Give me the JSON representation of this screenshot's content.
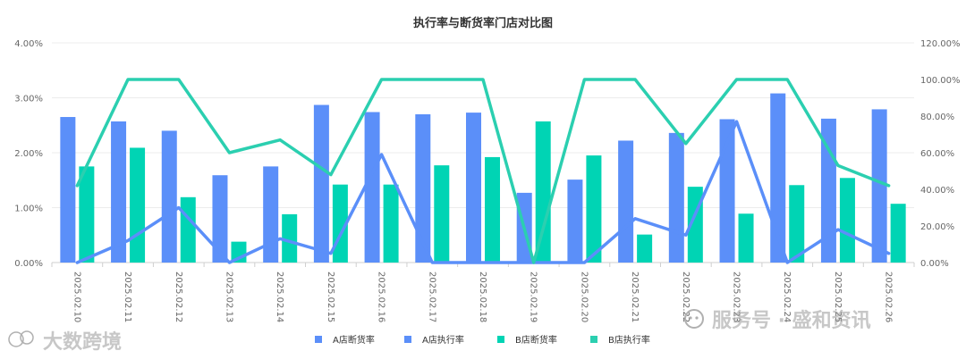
{
  "chart_data": {
    "type": "bar",
    "title": "执行率与断货率门店对比图",
    "categories": [
      "2025.02.10",
      "2025.02.11",
      "2025.02.12",
      "2025.02.13",
      "2025.02.14",
      "2025.02.15",
      "2025.02.16",
      "2025.02.17",
      "2025.02.18",
      "2025.02.19",
      "2025.02.20",
      "2025.02.21",
      "2025.02.22",
      "2025.02.23",
      "2025.02.24",
      "2025.02.25",
      "2025.02.26"
    ],
    "left_axis": {
      "ylim": [
        0,
        4
      ],
      "ticks": [
        "0.00%",
        "1.00%",
        "2.00%",
        "3.00%",
        "4.00%"
      ]
    },
    "right_axis": {
      "ylim": [
        0,
        120
      ],
      "ticks": [
        "0.00%",
        "20.00%",
        "40.00%",
        "60.00%",
        "80.00%",
        "100.00%",
        "120.00%"
      ]
    },
    "grid": true,
    "legend_position": "bottom",
    "series": [
      {
        "name": "A店断货率",
        "kind": "bar",
        "axis": "left",
        "unit": "%",
        "color": "#5B8FF9",
        "values": [
          2.65,
          2.57,
          2.4,
          1.59,
          1.75,
          2.87,
          2.74,
          2.7,
          2.73,
          1.27,
          1.51,
          2.22,
          2.36,
          2.61,
          3.08,
          2.62,
          2.79
        ]
      },
      {
        "name": "A店执行率",
        "kind": "line",
        "axis": "right",
        "unit": "%",
        "color": "#5B8FF9",
        "values": [
          0,
          12,
          30,
          0,
          13,
          5,
          59,
          0,
          0,
          0,
          0,
          24,
          15,
          77,
          0,
          18,
          5
        ]
      },
      {
        "name": "B店断货率",
        "kind": "bar",
        "axis": "left",
        "unit": "%",
        "color": "#00D4B4",
        "values": [
          1.75,
          2.09,
          1.19,
          0.38,
          0.88,
          1.42,
          1.42,
          1.77,
          1.92,
          2.57,
          1.95,
          0.51,
          1.38,
          0.89,
          1.41,
          1.54,
          1.07
        ]
      },
      {
        "name": "B店执行率",
        "kind": "line",
        "axis": "right",
        "unit": "%",
        "color": "#2BCFB0",
        "values": [
          42,
          100,
          100,
          60,
          67,
          48,
          100,
          100,
          100,
          0,
          100,
          100,
          65,
          100,
          100,
          53,
          42
        ]
      }
    ]
  },
  "watermarks": {
    "left": "大数跨境",
    "right": "服务号 · 盛和资讯"
  }
}
